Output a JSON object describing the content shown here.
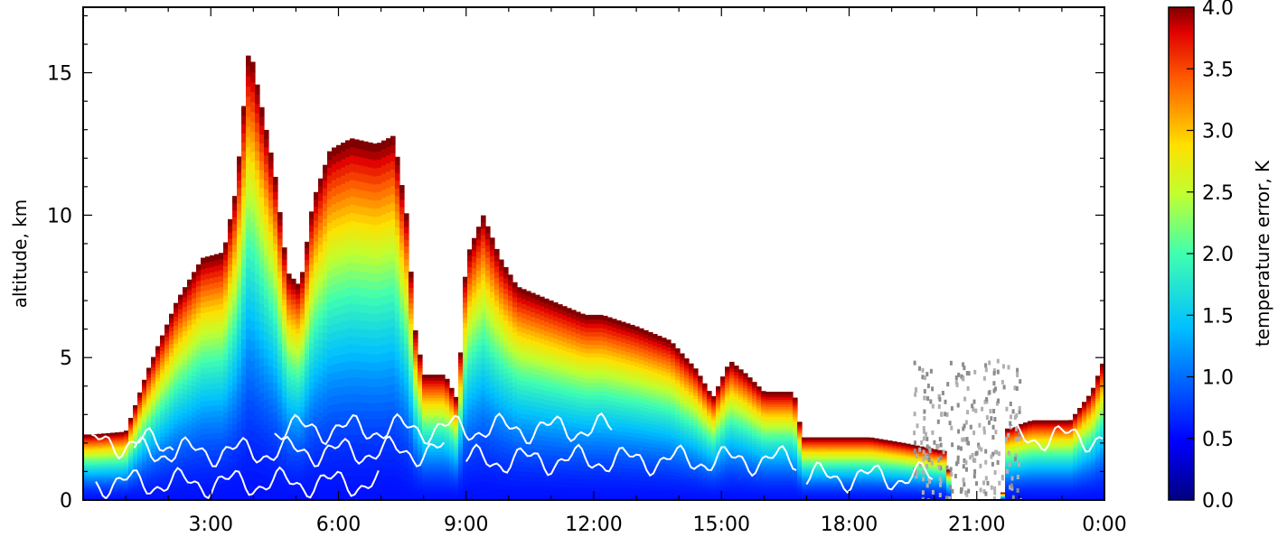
{
  "chart_data": {
    "type": "heatmap",
    "title": "",
    "xlabel": "",
    "ylabel": "altitude, km",
    "x_ticks": [
      "3:00",
      "6:00",
      "9:00",
      "12:00",
      "15:00",
      "18:00",
      "21:00",
      "0:00"
    ],
    "x_tick_hours": [
      3,
      6,
      9,
      12,
      15,
      18,
      21,
      24
    ],
    "xlim_hours": [
      0,
      24
    ],
    "y_ticks": [
      "0",
      "5",
      "10",
      "15"
    ],
    "y_tick_values": [
      0,
      5,
      10,
      15
    ],
    "ylim": [
      0,
      17.3
    ],
    "colorbar": {
      "label": "temperature error, K",
      "ticks": [
        "0.0",
        "0.5",
        "1.0",
        "1.5",
        "2.0",
        "2.5",
        "3.0",
        "3.5",
        "4.0"
      ],
      "tick_values": [
        0,
        0.5,
        1,
        1.5,
        2,
        2.5,
        3,
        3.5,
        4
      ],
      "range": [
        0,
        4
      ],
      "colormap": "jet"
    },
    "retrieval_top_km": [
      [
        0.2,
        2.3
      ],
      [
        1.0,
        2.4
      ],
      [
        1.5,
        4.5
      ],
      [
        2.2,
        7.0
      ],
      [
        2.8,
        8.5
      ],
      [
        3.3,
        8.7
      ],
      [
        3.6,
        11.0
      ],
      [
        3.9,
        16.0
      ],
      [
        4.1,
        14.5
      ],
      [
        4.5,
        11.5
      ],
      [
        4.8,
        8.0
      ],
      [
        5.1,
        7.5
      ],
      [
        5.4,
        10.5
      ],
      [
        5.8,
        12.3
      ],
      [
        6.3,
        12.7
      ],
      [
        6.9,
        12.5
      ],
      [
        7.3,
        12.8
      ],
      [
        7.6,
        10.0
      ],
      [
        7.8,
        6.0
      ],
      [
        8.0,
        4.4
      ],
      [
        8.5,
        4.4
      ],
      [
        8.8,
        3.5
      ],
      [
        9.0,
        8.5
      ],
      [
        9.4,
        10.0
      ],
      [
        9.8,
        8.5
      ],
      [
        10.2,
        7.5
      ],
      [
        11.0,
        7.0
      ],
      [
        11.8,
        6.5
      ],
      [
        12.2,
        6.5
      ],
      [
        13.0,
        6.1
      ],
      [
        13.8,
        5.6
      ],
      [
        14.4,
        4.6
      ],
      [
        14.8,
        3.6
      ],
      [
        15.2,
        4.9
      ],
      [
        15.6,
        4.4
      ],
      [
        16.0,
        3.8
      ],
      [
        16.7,
        3.8
      ],
      [
        16.9,
        2.2
      ],
      [
        18.5,
        2.2
      ],
      [
        19.3,
        2.0
      ],
      [
        20.3,
        1.7
      ],
      [
        20.4,
        0
      ],
      [
        21.6,
        0
      ],
      [
        21.7,
        2.5
      ],
      [
        22.3,
        2.8
      ],
      [
        23.2,
        2.8
      ],
      [
        23.7,
        3.8
      ],
      [
        24.0,
        5.0
      ]
    ],
    "noise_region": {
      "x_hours": [
        19.5,
        22.0
      ],
      "y_km": [
        0,
        5
      ]
    },
    "annotations": [
      "white cloud contours below ~3 km",
      "grey noise 19:30–22:00"
    ]
  }
}
